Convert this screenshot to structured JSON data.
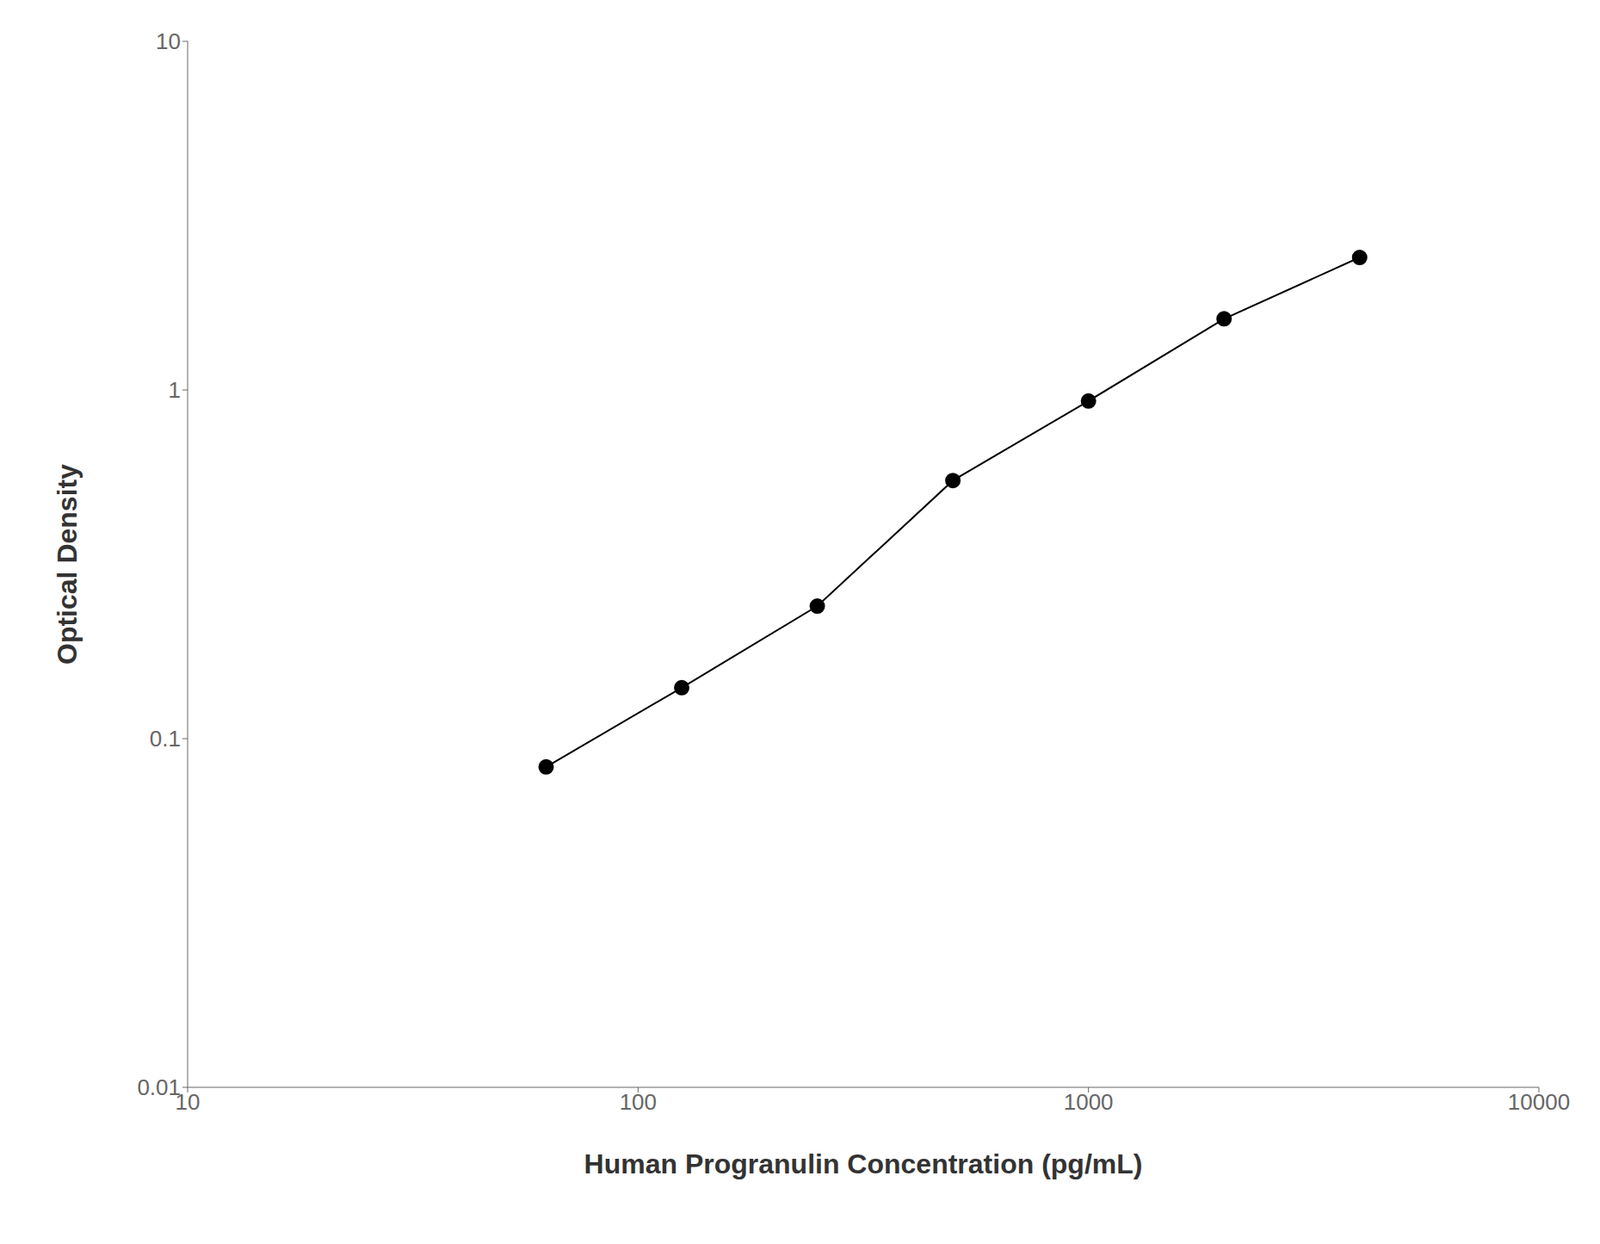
{
  "chart_data": {
    "type": "line",
    "x": [
      62.5,
      125,
      250,
      500,
      1000,
      2000,
      4000
    ],
    "values": [
      0.083,
      0.14,
      0.24,
      0.55,
      0.93,
      1.6,
      2.4
    ],
    "xlabel": "Human Progranulin Concentration (pg/mL)",
    "ylabel": "Optical Density",
    "xlim": [
      10,
      10000
    ],
    "ylim": [
      0.01,
      10
    ],
    "xticks": [
      10,
      100,
      1000,
      10000
    ],
    "yticks": [
      0.01,
      0.1,
      1,
      10
    ],
    "log": true,
    "grid": false,
    "color": "#000000",
    "marker": "circle"
  }
}
